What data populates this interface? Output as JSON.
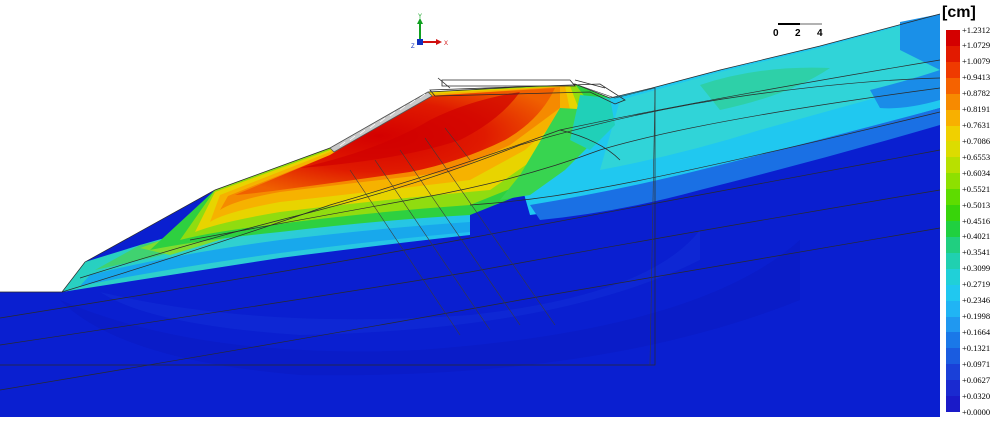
{
  "legend": {
    "unit": "[cm]",
    "ticks": [
      "+1.2312",
      "+1.0729",
      "+1.0079",
      "+0.9413",
      "+0.8782",
      "+0.8191",
      "+0.7631",
      "+0.7086",
      "+0.6553",
      "+0.6034",
      "+0.5521",
      "+0.5013",
      "+0.4516",
      "+0.4021",
      "+0.3541",
      "+0.3099",
      "+0.2719",
      "+0.2346",
      "+0.1998",
      "+0.1664",
      "+0.1321",
      "+0.0971",
      "+0.0627",
      "+0.0320",
      "+0.0000"
    ],
    "colors": [
      "#d40000",
      "#e21a00",
      "#ef3a00",
      "#f56200",
      "#f78a00",
      "#f8b000",
      "#f0d000",
      "#dcdc00",
      "#b8e000",
      "#8ee000",
      "#5edc00",
      "#38d40a",
      "#20d040",
      "#20cf80",
      "#20d0b0",
      "#20d0d8",
      "#20c8f0",
      "#20b4f4",
      "#2098f0",
      "#1a78e8",
      "#1a5ce0",
      "#1a40d8",
      "#1a2ad0",
      "#1a1ac8"
    ]
  },
  "scale_bar": {
    "labels": [
      "0",
      "2",
      "4"
    ]
  },
  "axes": {
    "y_label": "Y",
    "x_label": "X",
    "z_label": "Z"
  }
}
